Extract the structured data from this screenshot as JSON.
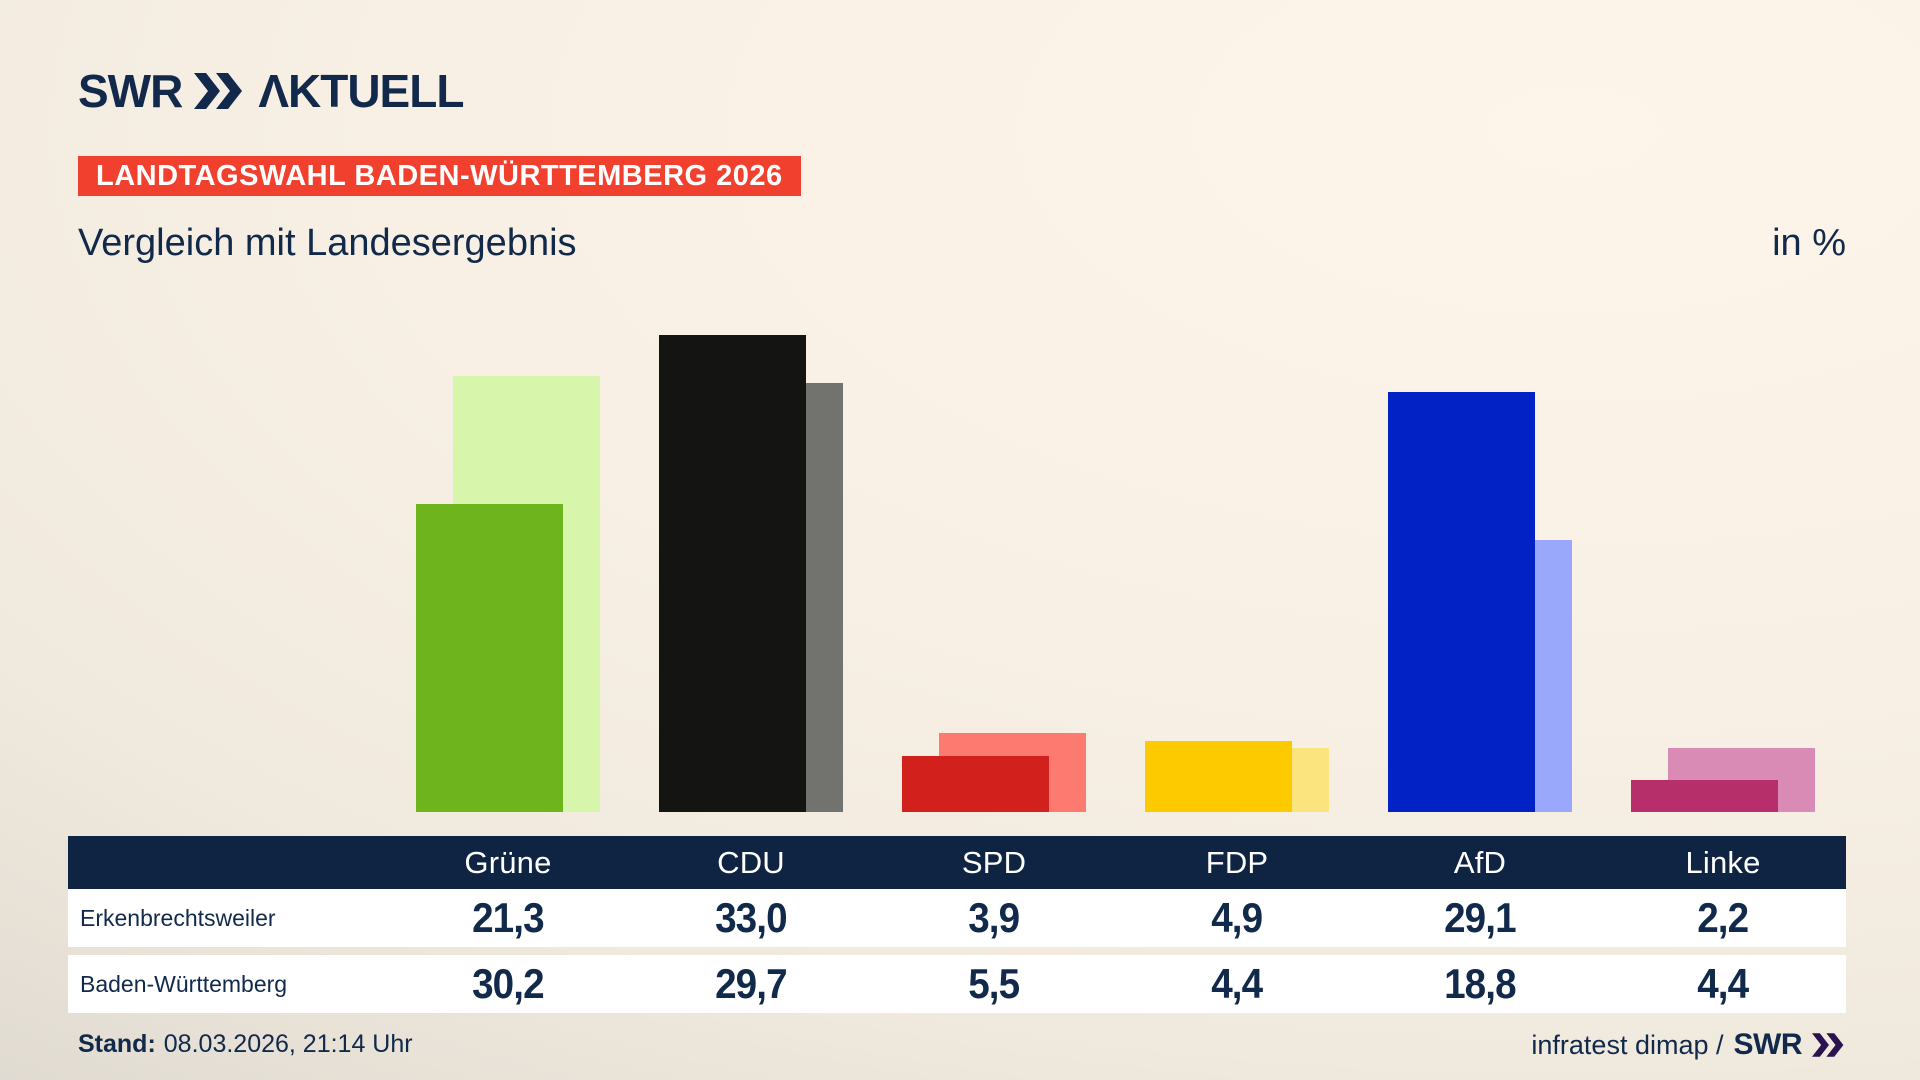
{
  "header": {
    "brand": "SWR",
    "brand_suffix": "ΛKTUELL",
    "badge": "LANDTAGSWAHL BADEN-WÜRTTEMBERG 2026",
    "title": "Vergleich mit Landesergebnis",
    "unit_label": "in %"
  },
  "colors": {
    "navy": "#13294b",
    "badge_red": "#f2402f",
    "table_header_bg": "#0f2342",
    "row_bg": "#ffffff",
    "footer_brand_purple": "#2d1250",
    "party_front": [
      "#6eb41c",
      "#141413",
      "#d2211c",
      "#fdca00",
      "#0222c6",
      "#b72f6a"
    ],
    "party_back": [
      "#d7f5ab",
      "#72726f",
      "#fc7a70",
      "#fbe37d",
      "#99a8fb",
      "#d98bb5"
    ]
  },
  "chart_data": {
    "type": "bar",
    "title": "Vergleich mit Landesergebnis",
    "unit": "in %",
    "categories": [
      "Grüne",
      "CDU",
      "SPD",
      "FDP",
      "AfD",
      "Linke"
    ],
    "series": [
      {
        "name": "Erkenbrechtsweiler",
        "values": [
          21.3,
          33.0,
          3.9,
          4.9,
          29.1,
          2.2
        ]
      },
      {
        "name": "Baden-Württemberg",
        "values": [
          30.2,
          29.7,
          5.5,
          4.4,
          18.8,
          4.4
        ]
      }
    ],
    "ylim": [
      0,
      37.5
    ],
    "grid": false,
    "legend_position": "table-below",
    "style_note": "front bar = local result, lighter offset back bar = state result"
  },
  "table": {
    "rows": [
      {
        "label": "Erkenbrechtsweiler",
        "values": [
          "21,3",
          "33,0",
          "3,9",
          "4,9",
          "29,1",
          "2,2"
        ]
      },
      {
        "label": "Baden-Württemberg",
        "values": [
          "30,2",
          "29,7",
          "5,5",
          "4,4",
          "18,8",
          "4,4"
        ]
      }
    ]
  },
  "footer": {
    "stand_label": "Stand:",
    "stand_value": "08.03.2026, 21:14 Uhr",
    "source_prefix": "infratest dimap /",
    "source_brand": "SWR"
  }
}
